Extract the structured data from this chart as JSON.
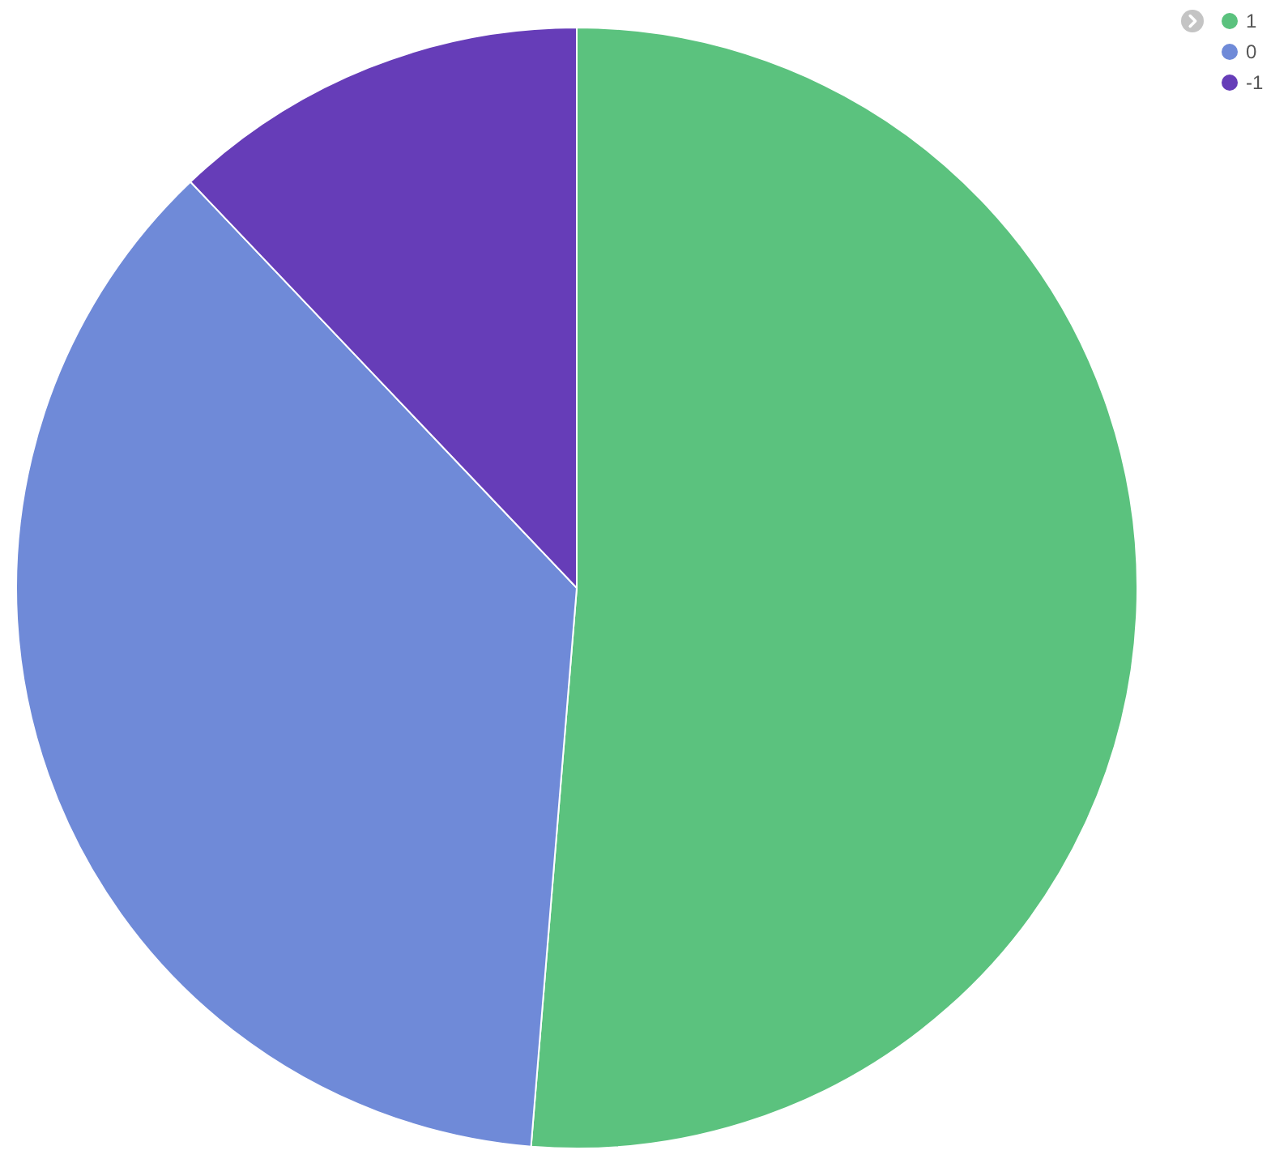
{
  "chart_data": {
    "type": "pie",
    "categories": [
      "1",
      "0",
      "-1"
    ],
    "values": [
      51.3,
      36.6,
      12.1
    ],
    "colors": [
      "#5bc27e",
      "#6f8ad8",
      "#663db8"
    ],
    "legend": "top right"
  }
}
